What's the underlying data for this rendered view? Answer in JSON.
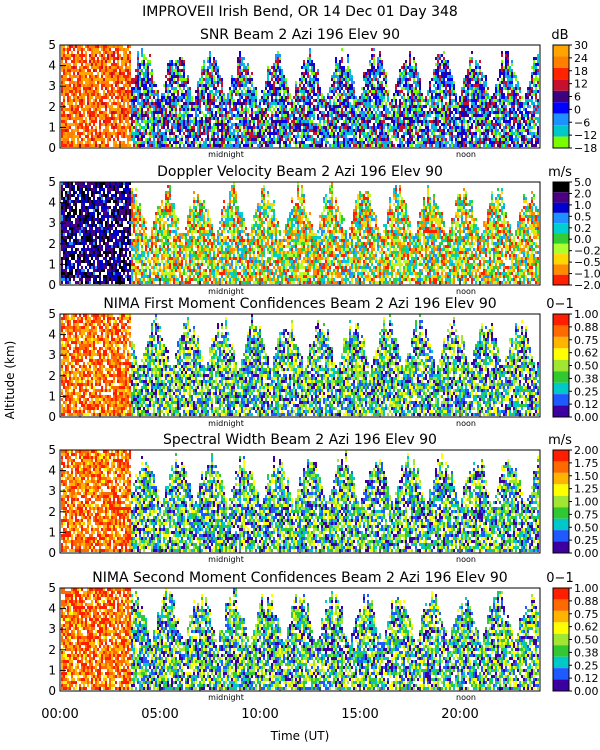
{
  "figure": {
    "title": "IMPROVEII  Irish Bend, OR  14 Dec 01 Day 348",
    "ylabel": "Altitude (km)",
    "xlabel": "Time (UT)",
    "xticks": [
      "00:00",
      "05:00",
      "10:00",
      "15:00",
      "20:00"
    ],
    "markers": [
      "midnight",
      "noon"
    ]
  },
  "chart_data": [
    {
      "type": "heatmap",
      "title": "SNR Beam 2 Azi 196 Elev 90",
      "units": "dB",
      "xlabel": "Time (UT)",
      "ylabel": "Altitude (km)",
      "xlim_hours": [
        0,
        24
      ],
      "ylim": [
        0,
        5
      ],
      "yticks": [
        0,
        1,
        2,
        3,
        4,
        5
      ],
      "scale_labels": [
        "30",
        "24",
        "18",
        "12",
        "6",
        "0",
        "−6",
        "−12",
        "−18"
      ],
      "scale_colors": [
        "#ffa500",
        "#ff7f00",
        "#ff2400",
        "#c8102e",
        "#3c0080",
        "#0000ff",
        "#1e90ff",
        "#00c8c8",
        "#7cfc00"
      ],
      "markers": {
        "midnight": 8.3,
        "noon": 20.3
      }
    },
    {
      "type": "heatmap",
      "title": "Doppler Velocity Beam 2 Azi 196 Elev 90",
      "units": "m/s",
      "xlabel": "Time (UT)",
      "ylabel": "Altitude (km)",
      "xlim_hours": [
        0,
        24
      ],
      "ylim": [
        0,
        5
      ],
      "yticks": [
        0,
        1,
        2,
        3,
        4,
        5
      ],
      "scale_labels": [
        "5.0",
        "2.0",
        "1.0",
        "0.5",
        "0.2",
        "0.0",
        "−0.2",
        "−0.5",
        "−1.0",
        "−2.0"
      ],
      "scale_colors": [
        "#000000",
        "#4b0082",
        "#0000cd",
        "#1e90ff",
        "#00ced1",
        "#32cd32",
        "#adff2f",
        "#ffd700",
        "#ff8c00",
        "#ff2000"
      ],
      "markers": {
        "midnight": 8.3,
        "noon": 20.3
      }
    },
    {
      "type": "heatmap",
      "title": "NIMA First Moment Confidences Beam 2 Azi 196 Elev 90",
      "units": "0−1",
      "xlabel": "Time (UT)",
      "ylabel": "Altitude (km)",
      "xlim_hours": [
        0,
        24
      ],
      "ylim": [
        0,
        5
      ],
      "yticks": [
        0,
        1,
        2,
        3,
        4,
        5
      ],
      "scale_labels": [
        "1.00",
        "0.88",
        "0.75",
        "0.62",
        "0.50",
        "0.38",
        "0.25",
        "0.12",
        "0.00"
      ],
      "scale_colors": [
        "#ff1e00",
        "#ff6a00",
        "#ffb400",
        "#ffff00",
        "#a0e632",
        "#32c832",
        "#00c8c8",
        "#1e5aff",
        "#3c00a0"
      ],
      "markers": {
        "midnight": 8.3,
        "noon": 20.3
      }
    },
    {
      "type": "heatmap",
      "title": "Spectral Width Beam 2 Azi 196 Elev 90",
      "units": "m/s",
      "xlabel": "Time (UT)",
      "ylabel": "Altitude (km)",
      "xlim_hours": [
        0,
        24
      ],
      "ylim": [
        0,
        5
      ],
      "yticks": [
        0,
        1,
        2,
        3,
        4,
        5
      ],
      "scale_labels": [
        "2.00",
        "1.75",
        "1.50",
        "1.25",
        "1.00",
        "0.75",
        "0.50",
        "0.25",
        "0.00"
      ],
      "scale_colors": [
        "#ff1e00",
        "#ff6a00",
        "#ffb400",
        "#ffff00",
        "#a0e632",
        "#32c832",
        "#00c8c8",
        "#1e5aff",
        "#3c00a0"
      ],
      "markers": {
        "midnight": 8.3,
        "noon": 20.3
      }
    },
    {
      "type": "heatmap",
      "title": "NIMA Second Moment Confidences Beam 2 Azi 196 Elev 90",
      "units": "0−1",
      "xlabel": "Time (UT)",
      "ylabel": "Altitude (km)",
      "xlim_hours": [
        0,
        24
      ],
      "ylim": [
        0,
        5
      ],
      "yticks": [
        0,
        1,
        2,
        3,
        4,
        5
      ],
      "scale_labels": [
        "1.00",
        "0.88",
        "0.75",
        "0.62",
        "0.50",
        "0.38",
        "0.25",
        "0.12",
        "0.00"
      ],
      "scale_colors": [
        "#ff1e00",
        "#ff6a00",
        "#ffb400",
        "#ffff00",
        "#a0e632",
        "#32c832",
        "#00c8c8",
        "#1e5aff",
        "#3c00a0"
      ],
      "markers": {
        "midnight": 8.3,
        "noon": 20.3
      }
    }
  ]
}
